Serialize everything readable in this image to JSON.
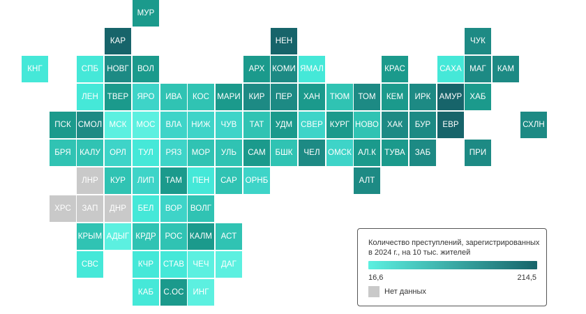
{
  "map": {
    "tiles": [
      {
        "label": "МУР",
        "col": 5,
        "row": 0,
        "color": "#1b9a8c"
      },
      {
        "label": "КАР",
        "col": 4,
        "row": 1,
        "color": "#17646a"
      },
      {
        "label": "НЕН",
        "col": 10,
        "row": 1,
        "color": "#17646a"
      },
      {
        "label": "ЧУК",
        "col": 17,
        "row": 1,
        "color": "#1d8a84"
      },
      {
        "label": "КНГ",
        "col": 1,
        "row": 2,
        "color": "#45e8d8"
      },
      {
        "label": "СПБ",
        "col": 3,
        "row": 2,
        "color": "#45e8d8"
      },
      {
        "label": "НОВГ",
        "col": 4,
        "row": 2,
        "color": "#1d8a84"
      },
      {
        "label": "ВОЛ",
        "col": 5,
        "row": 2,
        "color": "#1b9a8c"
      },
      {
        "label": "АРХ",
        "col": 9,
        "row": 2,
        "color": "#1b9a8c"
      },
      {
        "label": "КОМИ",
        "col": 10,
        "row": 2,
        "color": "#1d8a84"
      },
      {
        "label": "ЯМАЛ",
        "col": 11,
        "row": 2,
        "color": "#45e8d8"
      },
      {
        "label": "КРАС",
        "col": 14,
        "row": 2,
        "color": "#1b9a8c"
      },
      {
        "label": "САХА",
        "col": 16,
        "row": 2,
        "color": "#45e8d8"
      },
      {
        "label": "МАГ",
        "col": 17,
        "row": 2,
        "color": "#1d8a84"
      },
      {
        "label": "КАМ",
        "col": 18,
        "row": 2,
        "color": "#1d8a84"
      },
      {
        "label": "ЛЕН",
        "col": 3,
        "row": 3,
        "color": "#45e8d8"
      },
      {
        "label": "ТВЕР",
        "col": 4,
        "row": 3,
        "color": "#1b9a8c"
      },
      {
        "label": "ЯРО",
        "col": 5,
        "row": 3,
        "color": "#3ed4c8"
      },
      {
        "label": "ИВА",
        "col": 6,
        "row": 3,
        "color": "#30c3b3"
      },
      {
        "label": "КОС",
        "col": 7,
        "row": 3,
        "color": "#30c3b3"
      },
      {
        "label": "МАРИ",
        "col": 8,
        "row": 3,
        "color": "#1b9a8c"
      },
      {
        "label": "КИР",
        "col": 9,
        "row": 3,
        "color": "#1d8a84"
      },
      {
        "label": "ПЕР",
        "col": 10,
        "row": 3,
        "color": "#1d8a84"
      },
      {
        "label": "ХАН",
        "col": 11,
        "row": 3,
        "color": "#1b9a8c"
      },
      {
        "label": "ТЮМ",
        "col": 12,
        "row": 3,
        "color": "#30c3b3"
      },
      {
        "label": "ТОМ",
        "col": 13,
        "row": 3,
        "color": "#1d8a84"
      },
      {
        "label": "КЕМ",
        "col": 14,
        "row": 3,
        "color": "#1b9a8c"
      },
      {
        "label": "ИРК",
        "col": 15,
        "row": 3,
        "color": "#1d8a84"
      },
      {
        "label": "АМУР",
        "col": 16,
        "row": 3,
        "color": "#17646a"
      },
      {
        "label": "ХАБ",
        "col": 17,
        "row": 3,
        "color": "#1b9a8c"
      },
      {
        "label": "ПСК",
        "col": 2,
        "row": 4,
        "color": "#1b9a8c"
      },
      {
        "label": "СМОЛ",
        "col": 3,
        "row": 4,
        "color": "#1d8a84"
      },
      {
        "label": "МСК",
        "col": 4,
        "row": 4,
        "color": "#5cf0e0"
      },
      {
        "label": "МОС",
        "col": 5,
        "row": 4,
        "color": "#5cf0e0"
      },
      {
        "label": "ВЛА",
        "col": 6,
        "row": 4,
        "color": "#3ed4c8"
      },
      {
        "label": "НИЖ",
        "col": 7,
        "row": 4,
        "color": "#3ed4c8"
      },
      {
        "label": "ЧУВ",
        "col": 8,
        "row": 4,
        "color": "#3ed4c8"
      },
      {
        "label": "ТАТ",
        "col": 9,
        "row": 4,
        "color": "#30c3b3"
      },
      {
        "label": "УДМ",
        "col": 10,
        "row": 4,
        "color": "#1b9a8c"
      },
      {
        "label": "СВЕР",
        "col": 11,
        "row": 4,
        "color": "#3ed4c8"
      },
      {
        "label": "КУРГ",
        "col": 12,
        "row": 4,
        "color": "#1b9a8c"
      },
      {
        "label": "НОВО",
        "col": 13,
        "row": 4,
        "color": "#30c3b3"
      },
      {
        "label": "ХАК",
        "col": 14,
        "row": 4,
        "color": "#1d8a84"
      },
      {
        "label": "БУР",
        "col": 15,
        "row": 4,
        "color": "#1d8a84"
      },
      {
        "label": "ЕВР",
        "col": 16,
        "row": 4,
        "color": "#17646a"
      },
      {
        "label": "СХЛН",
        "col": 19,
        "row": 4,
        "color": "#1d8a84"
      },
      {
        "label": "БРЯ",
        "col": 2,
        "row": 5,
        "color": "#30c3b3"
      },
      {
        "label": "КАЛУ",
        "col": 3,
        "row": 5,
        "color": "#30c3b3"
      },
      {
        "label": "ОРЛ",
        "col": 4,
        "row": 5,
        "color": "#3ed4c8"
      },
      {
        "label": "ТУЛ",
        "col": 5,
        "row": 5,
        "color": "#45e8d8"
      },
      {
        "label": "РЯЗ",
        "col": 6,
        "row": 5,
        "color": "#3ed4c8"
      },
      {
        "label": "МОР",
        "col": 7,
        "row": 5,
        "color": "#30c3b3"
      },
      {
        "label": "УЛЬ",
        "col": 8,
        "row": 5,
        "color": "#30c3b3"
      },
      {
        "label": "САМ",
        "col": 9,
        "row": 5,
        "color": "#1b9a8c"
      },
      {
        "label": "БШК",
        "col": 10,
        "row": 5,
        "color": "#30c3b3"
      },
      {
        "label": "ЧЕЛ",
        "col": 11,
        "row": 5,
        "color": "#1d8a84"
      },
      {
        "label": "ОМСК",
        "col": 12,
        "row": 5,
        "color": "#3ed4c8"
      },
      {
        "label": "АЛ.К",
        "col": 13,
        "row": 5,
        "color": "#1b9a8c"
      },
      {
        "label": "ТУВА",
        "col": 14,
        "row": 5,
        "color": "#1b9a8c"
      },
      {
        "label": "ЗАБ",
        "col": 15,
        "row": 5,
        "color": "#1d8a84"
      },
      {
        "label": "ПРИ",
        "col": 17,
        "row": 5,
        "color": "#1d8a84"
      },
      {
        "label": "ЛНР",
        "col": 3,
        "row": 6,
        "color": "#c9c9c9"
      },
      {
        "label": "КУР",
        "col": 4,
        "row": 6,
        "color": "#30c3b3"
      },
      {
        "label": "ЛИП",
        "col": 5,
        "row": 6,
        "color": "#3ed4c8"
      },
      {
        "label": "ТАМ",
        "col": 6,
        "row": 6,
        "color": "#1b9a8c"
      },
      {
        "label": "ПЕН",
        "col": 7,
        "row": 6,
        "color": "#45e8d8"
      },
      {
        "label": "САР",
        "col": 8,
        "row": 6,
        "color": "#30c3b3"
      },
      {
        "label": "ОРНБ",
        "col": 9,
        "row": 6,
        "color": "#3ed4c8"
      },
      {
        "label": "АЛТ",
        "col": 13,
        "row": 6,
        "color": "#1d8a84"
      },
      {
        "label": "ХРС",
        "col": 2,
        "row": 7,
        "color": "#c9c9c9"
      },
      {
        "label": "ЗАП",
        "col": 3,
        "row": 7,
        "color": "#c9c9c9"
      },
      {
        "label": "ДНР",
        "col": 4,
        "row": 7,
        "color": "#c9c9c9"
      },
      {
        "label": "БЕЛ",
        "col": 5,
        "row": 7,
        "color": "#45e8d8"
      },
      {
        "label": "ВОР",
        "col": 6,
        "row": 7,
        "color": "#3ed4c8"
      },
      {
        "label": "ВОЛГ",
        "col": 7,
        "row": 7,
        "color": "#30c3b3"
      },
      {
        "label": "КРЫМ",
        "col": 3,
        "row": 8,
        "color": "#30c3b3"
      },
      {
        "label": "АДЫГ",
        "col": 4,
        "row": 8,
        "color": "#5cf0e0"
      },
      {
        "label": "КРДР",
        "col": 5,
        "row": 8,
        "color": "#30c3b3"
      },
      {
        "label": "РОС",
        "col": 6,
        "row": 8,
        "color": "#30c3b3"
      },
      {
        "label": "КАЛМ",
        "col": 7,
        "row": 8,
        "color": "#1b9a8c"
      },
      {
        "label": "АСТ",
        "col": 8,
        "row": 8,
        "color": "#30c3b3"
      },
      {
        "label": "СВС",
        "col": 3,
        "row": 9,
        "color": "#45e8d8"
      },
      {
        "label": "КЧР",
        "col": 5,
        "row": 9,
        "color": "#45e8d8"
      },
      {
        "label": "СТАВ",
        "col": 6,
        "row": 9,
        "color": "#45e8d8"
      },
      {
        "label": "ЧЕЧ",
        "col": 7,
        "row": 9,
        "color": "#5cf0e0"
      },
      {
        "label": "ДАГ",
        "col": 8,
        "row": 9,
        "color": "#5cf0e0"
      },
      {
        "label": "КАБ",
        "col": 5,
        "row": 10,
        "color": "#45e8d8"
      },
      {
        "label": "С.ОС",
        "col": 6,
        "row": 10,
        "color": "#1b9a8c"
      },
      {
        "label": "ИНГ",
        "col": 7,
        "row": 10,
        "color": "#5cf0e0"
      }
    ]
  },
  "legend": {
    "title": "Количество преступлений, зарегистрированных в 2024 г., на 10 тыс. жителей",
    "min_label": "16,6",
    "max_label": "214,5",
    "no_data_label": "Нет данных",
    "gradient_start": "#5cf0e0",
    "gradient_end": "#17646a",
    "no_data_color": "#c9c9c9"
  }
}
